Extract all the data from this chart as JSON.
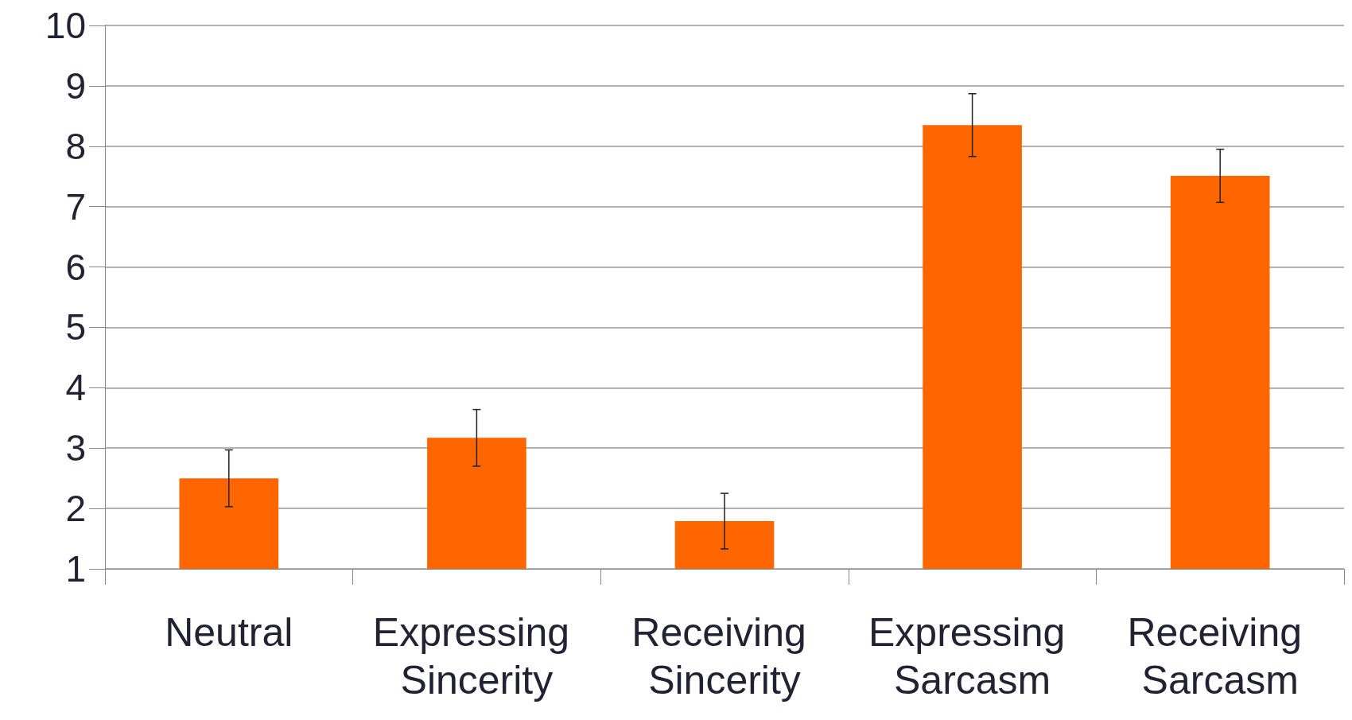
{
  "chart_data": {
    "type": "bar",
    "categories": [
      "Neutral",
      "Expressing Sincerity",
      "Receiving Sincerity",
      "Expressing Sarcasm",
      "Receiving Sarcasm"
    ],
    "values": [
      2.5,
      3.17,
      1.79,
      8.35,
      7.51
    ],
    "errors": [
      0.47,
      0.47,
      0.46,
      0.52,
      0.44
    ],
    "color": "#ff6600",
    "ylim": [
      1,
      10
    ],
    "yticks": [
      1,
      2,
      3,
      4,
      5,
      6,
      7,
      8,
      9,
      10
    ],
    "grid": "y"
  }
}
